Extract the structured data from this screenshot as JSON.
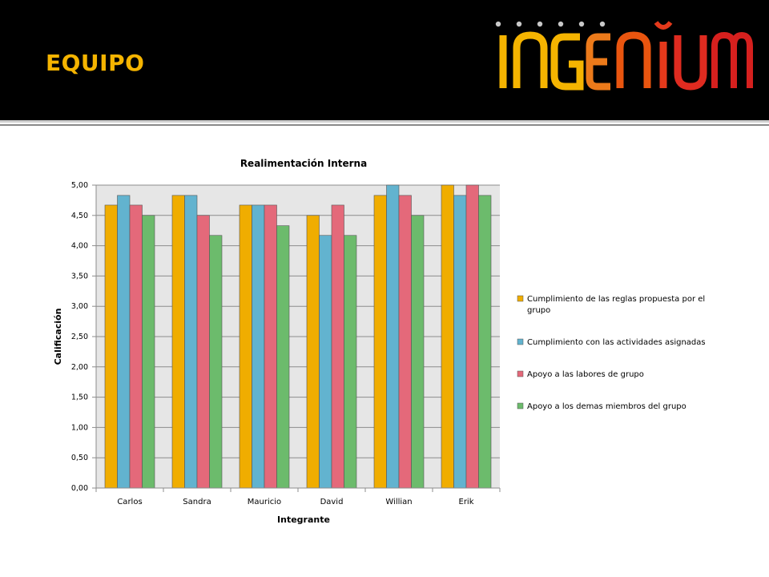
{
  "slide": {
    "title": "EQUIPO",
    "logo_text": "INGENĬUM",
    "logo_dots": 6
  },
  "colors": {
    "header_bg": "#000000",
    "title": "#f5b400",
    "plot_bg": "#e6e6e6"
  },
  "chart_data": {
    "type": "bar",
    "title": "Realimentación Interna",
    "xlabel": "Integrante",
    "ylabel": "Calificación",
    "ylim": [
      0,
      5
    ],
    "ytick_labels": [
      "0,00",
      "0,50",
      "1,00",
      "1,50",
      "2,00",
      "2,50",
      "3,00",
      "3,50",
      "4,00",
      "4,50",
      "5,00"
    ],
    "categories": [
      "Carlos",
      "Sandra",
      "Mauricio",
      "David",
      "Willian",
      "Erik"
    ],
    "grid": true,
    "legend_position": "right",
    "series": [
      {
        "name": "Cumplimiento de las reglas propuesta por el grupo",
        "color": "#f0ad00",
        "values": [
          4.67,
          4.83,
          4.67,
          4.5,
          4.83,
          5.0
        ]
      },
      {
        "name": "Cumplimiento con las actividades asignadas",
        "color": "#62b3cf",
        "values": [
          4.83,
          4.83,
          4.67,
          4.17,
          5.0,
          4.83
        ]
      },
      {
        "name": "Apoyo a las labores de grupo",
        "color": "#e4697a",
        "values": [
          4.67,
          4.5,
          4.67,
          4.67,
          4.83,
          5.0
        ]
      },
      {
        "name": "Apoyo a los demas miembros del grupo",
        "color": "#6cbb6c",
        "values": [
          4.5,
          4.17,
          4.33,
          4.17,
          4.5,
          4.83
        ]
      }
    ]
  }
}
